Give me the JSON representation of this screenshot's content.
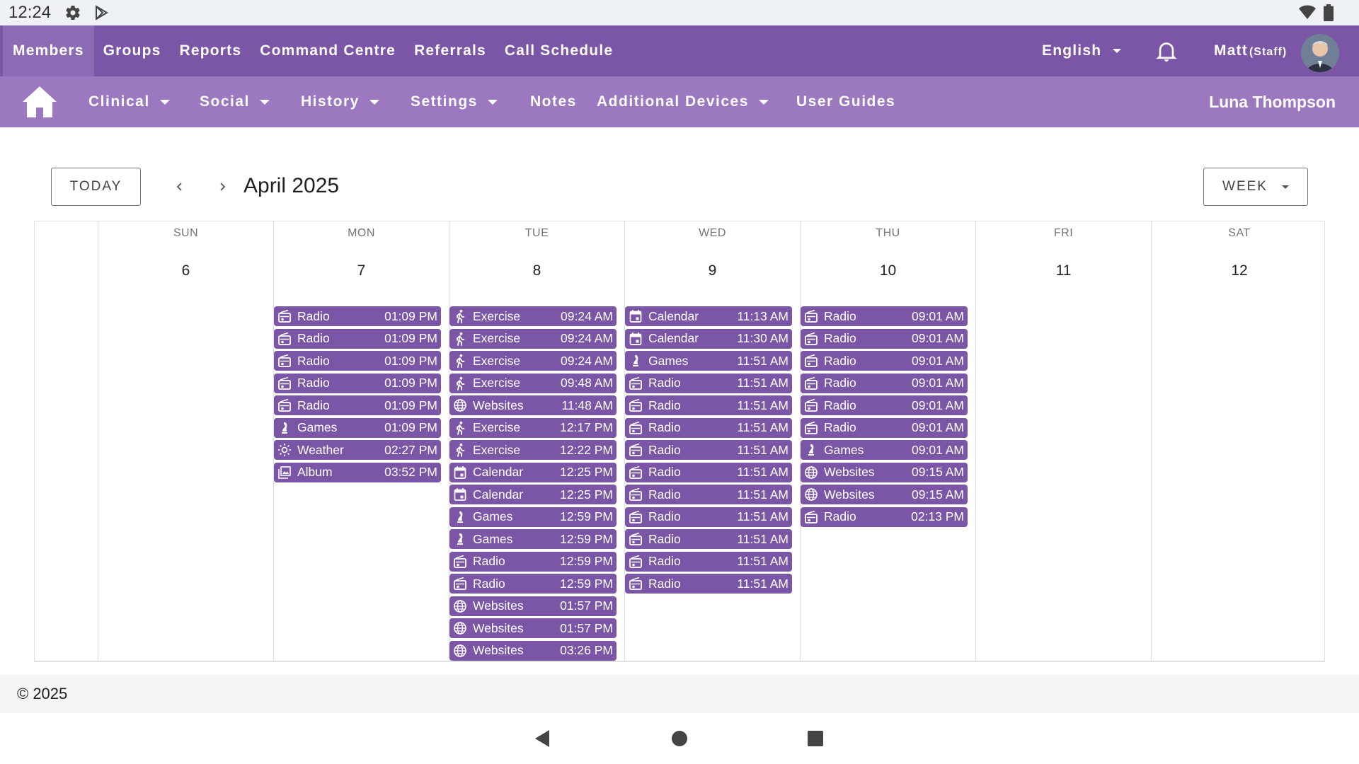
{
  "status_bar": {
    "time": "12:24",
    "icons": [
      "settings-icon",
      "play-store-icon",
      "wifi-icon",
      "battery-icon"
    ]
  },
  "top_nav": {
    "items": [
      {
        "label": "Members",
        "active": true
      },
      {
        "label": "Groups",
        "active": false
      },
      {
        "label": "Reports",
        "active": false
      },
      {
        "label": "Command Centre",
        "active": false
      },
      {
        "label": "Referrals",
        "active": false
      },
      {
        "label": "Call Schedule",
        "active": false
      }
    ],
    "language": "English",
    "user_name": "Matt",
    "user_role": "(Staff)"
  },
  "sub_nav": {
    "items": [
      {
        "label": "Clinical",
        "dropdown": true
      },
      {
        "label": "Social",
        "dropdown": true
      },
      {
        "label": "History",
        "dropdown": true
      },
      {
        "label": "Settings",
        "dropdown": true
      },
      {
        "label": "Notes",
        "dropdown": false
      },
      {
        "label": "Additional Devices",
        "dropdown": true
      },
      {
        "label": "User Guides",
        "dropdown": false
      }
    ],
    "patient_name": "Luna Thompson"
  },
  "calendar": {
    "today_label": "TODAY",
    "month_label": "April 2025",
    "view_label": "WEEK",
    "accent_color": "#7b55a6",
    "days": [
      {
        "name": "SUN",
        "number": "6",
        "events": []
      },
      {
        "name": "MON",
        "number": "7",
        "events": [
          {
            "icon": "radio",
            "title": "Radio",
            "time": "01:09 PM"
          },
          {
            "icon": "radio",
            "title": "Radio",
            "time": "01:09 PM"
          },
          {
            "icon": "radio",
            "title": "Radio",
            "time": "01:09 PM"
          },
          {
            "icon": "radio",
            "title": "Radio",
            "time": "01:09 PM"
          },
          {
            "icon": "radio",
            "title": "Radio",
            "time": "01:09 PM"
          },
          {
            "icon": "games",
            "title": "Games",
            "time": "01:09 PM"
          },
          {
            "icon": "weather",
            "title": "Weather",
            "time": "02:27 PM"
          },
          {
            "icon": "album",
            "title": "Album",
            "time": "03:52 PM"
          }
        ]
      },
      {
        "name": "TUE",
        "number": "8",
        "events": [
          {
            "icon": "exercise",
            "title": "Exercise",
            "time": "09:24 AM"
          },
          {
            "icon": "exercise",
            "title": "Exercise",
            "time": "09:24 AM"
          },
          {
            "icon": "exercise",
            "title": "Exercise",
            "time": "09:24 AM"
          },
          {
            "icon": "exercise",
            "title": "Exercise",
            "time": "09:48 AM"
          },
          {
            "icon": "websites",
            "title": "Websites",
            "time": "11:48 AM"
          },
          {
            "icon": "exercise",
            "title": "Exercise",
            "time": "12:17 PM"
          },
          {
            "icon": "exercise",
            "title": "Exercise",
            "time": "12:22 PM"
          },
          {
            "icon": "calendar",
            "title": "Calendar",
            "time": "12:25 PM"
          },
          {
            "icon": "calendar",
            "title": "Calendar",
            "time": "12:25 PM"
          },
          {
            "icon": "games",
            "title": "Games",
            "time": "12:59 PM"
          },
          {
            "icon": "games",
            "title": "Games",
            "time": "12:59 PM"
          },
          {
            "icon": "radio",
            "title": "Radio",
            "time": "12:59 PM"
          },
          {
            "icon": "radio",
            "title": "Radio",
            "time": "12:59 PM"
          },
          {
            "icon": "websites",
            "title": "Websites",
            "time": "01:57 PM"
          },
          {
            "icon": "websites",
            "title": "Websites",
            "time": "01:57 PM"
          },
          {
            "icon": "websites",
            "title": "Websites",
            "time": "03:26 PM"
          }
        ]
      },
      {
        "name": "WED",
        "number": "9",
        "events": [
          {
            "icon": "calendar",
            "title": "Calendar",
            "time": "11:13 AM"
          },
          {
            "icon": "calendar",
            "title": "Calendar",
            "time": "11:30 AM"
          },
          {
            "icon": "games",
            "title": "Games",
            "time": "11:51 AM"
          },
          {
            "icon": "radio",
            "title": "Radio",
            "time": "11:51 AM"
          },
          {
            "icon": "radio",
            "title": "Radio",
            "time": "11:51 AM"
          },
          {
            "icon": "radio",
            "title": "Radio",
            "time": "11:51 AM"
          },
          {
            "icon": "radio",
            "title": "Radio",
            "time": "11:51 AM"
          },
          {
            "icon": "radio",
            "title": "Radio",
            "time": "11:51 AM"
          },
          {
            "icon": "radio",
            "title": "Radio",
            "time": "11:51 AM"
          },
          {
            "icon": "radio",
            "title": "Radio",
            "time": "11:51 AM"
          },
          {
            "icon": "radio",
            "title": "Radio",
            "time": "11:51 AM"
          },
          {
            "icon": "radio",
            "title": "Radio",
            "time": "11:51 AM"
          },
          {
            "icon": "radio",
            "title": "Radio",
            "time": "11:51 AM"
          }
        ]
      },
      {
        "name": "THU",
        "number": "10",
        "events": [
          {
            "icon": "radio",
            "title": "Radio",
            "time": "09:01 AM"
          },
          {
            "icon": "radio",
            "title": "Radio",
            "time": "09:01 AM"
          },
          {
            "icon": "radio",
            "title": "Radio",
            "time": "09:01 AM"
          },
          {
            "icon": "radio",
            "title": "Radio",
            "time": "09:01 AM"
          },
          {
            "icon": "radio",
            "title": "Radio",
            "time": "09:01 AM"
          },
          {
            "icon": "radio",
            "title": "Radio",
            "time": "09:01 AM"
          },
          {
            "icon": "games",
            "title": "Games",
            "time": "09:01 AM"
          },
          {
            "icon": "websites",
            "title": "Websites",
            "time": "09:15 AM"
          },
          {
            "icon": "websites",
            "title": "Websites",
            "time": "09:15 AM"
          },
          {
            "icon": "radio",
            "title": "Radio",
            "time": "02:13 PM"
          }
        ]
      },
      {
        "name": "FRI",
        "number": "11",
        "events": []
      },
      {
        "name": "SAT",
        "number": "12",
        "events": []
      }
    ]
  },
  "footer": {
    "copyright": "© 2025"
  }
}
